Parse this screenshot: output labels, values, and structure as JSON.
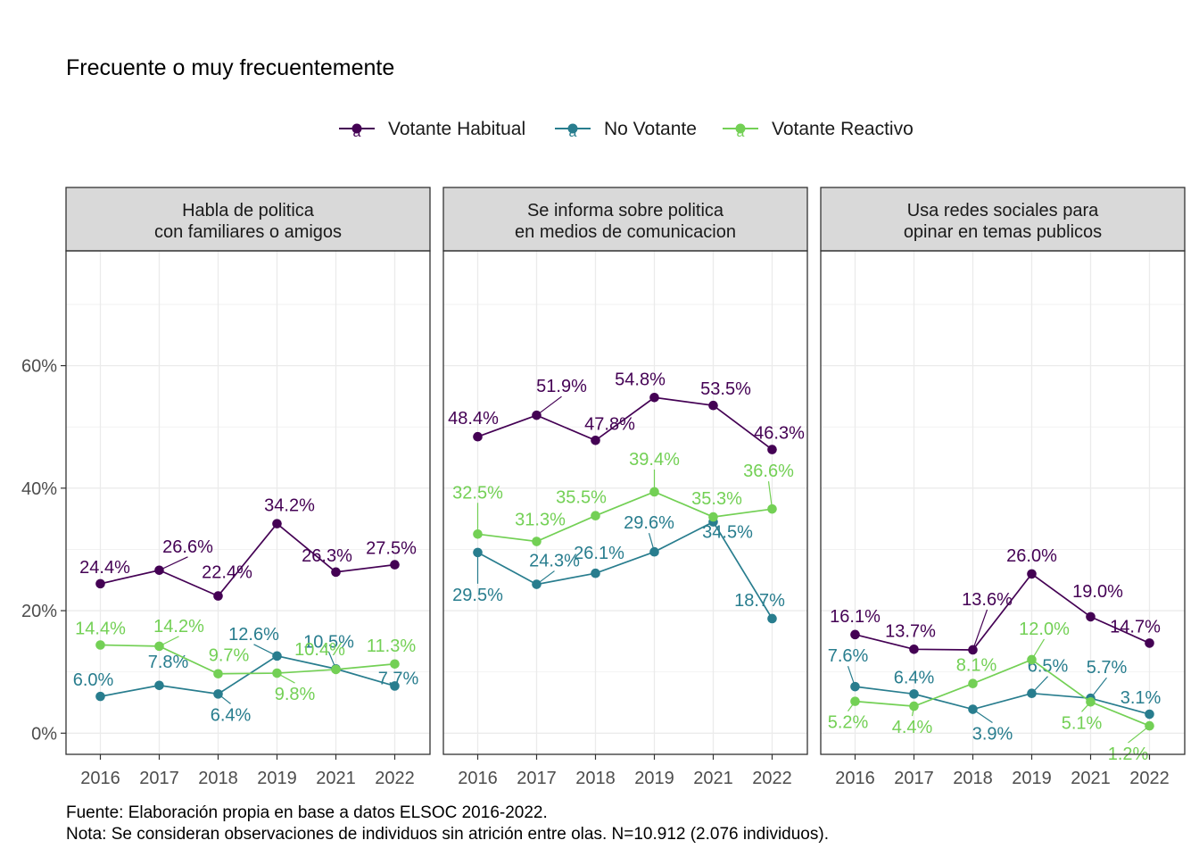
{
  "chart_data": {
    "type": "line",
    "title": "Frecuente o muy frecuentemente",
    "caption_line1": "Fuente: Elaboración propia en base a datos ELSOC 2016-2022.",
    "caption_line2": "Nota: Se consideran observaciones de individuos sin atrición entre olas. N=10.912 (2.076 individuos).",
    "x": [
      "2016",
      "2017",
      "2018",
      "2019",
      "2021",
      "2022"
    ],
    "ylim": [
      0,
      72
    ],
    "yticks": [
      0,
      20,
      40,
      60
    ],
    "ytick_labels": [
      "0%",
      "20%",
      "40%",
      "60%"
    ],
    "grid": true,
    "legend_position": "top",
    "legend_glyph": "a",
    "series_meta": [
      {
        "name": "Votante Habitual",
        "color": "#440154"
      },
      {
        "name": "No Votante",
        "color": "#287d8e"
      },
      {
        "name": "Votante Reactivo",
        "color": "#73d055"
      }
    ],
    "panels": [
      {
        "title_line1": "Habla de politica",
        "title_line2": "con familiares o amigos",
        "series": [
          {
            "values": [
              24.4,
              26.6,
              22.4,
              34.2,
              26.3,
              27.5
            ],
            "labels": [
              "24.4%",
              "26.6%",
              "22.4%",
              "34.2%",
              "26.3%",
              "27.5%"
            ]
          },
          {
            "values": [
              6.0,
              7.8,
              6.4,
              12.6,
              10.5,
              7.7
            ],
            "labels": [
              "6.0%",
              "7.8%",
              "6.4%",
              "12.6%",
              "10.5%",
              "7.7%"
            ]
          },
          {
            "values": [
              14.4,
              14.2,
              9.7,
              9.8,
              10.4,
              11.3
            ],
            "labels": [
              "14.4%",
              "14.2%",
              "9.7%",
              "9.8%",
              "10.4%",
              "11.3%"
            ]
          }
        ]
      },
      {
        "title_line1": "Se informa sobre politica",
        "title_line2": "en medios de comunicacion",
        "series": [
          {
            "values": [
              48.4,
              51.9,
              47.8,
              54.8,
              53.5,
              46.3
            ],
            "labels": [
              "48.4%",
              "51.9%",
              "47.8%",
              "54.8%",
              "53.5%",
              "46.3%"
            ]
          },
          {
            "values": [
              29.5,
              24.3,
              26.1,
              29.6,
              34.5,
              18.7
            ],
            "labels": [
              "29.5%",
              "24.3%",
              "26.1%",
              "29.6%",
              "34.5%",
              "18.7%"
            ]
          },
          {
            "values": [
              32.5,
              31.3,
              35.5,
              39.4,
              35.3,
              36.6
            ],
            "labels": [
              "32.5%",
              "31.3%",
              "35.5%",
              "39.4%",
              "35.3%",
              "36.6%"
            ]
          }
        ]
      },
      {
        "title_line1": "Usa redes sociales para",
        "title_line2": "opinar en temas publicos",
        "series": [
          {
            "values": [
              16.1,
              13.7,
              13.6,
              26.0,
              19.0,
              14.7
            ],
            "labels": [
              "16.1%",
              "13.7%",
              "13.6%",
              "26.0%",
              "19.0%",
              "14.7%"
            ]
          },
          {
            "values": [
              7.6,
              6.4,
              3.9,
              6.5,
              5.7,
              3.1
            ],
            "labels": [
              "7.6%",
              "6.4%",
              "3.9%",
              "6.5%",
              "5.7%",
              "3.1%"
            ]
          },
          {
            "values": [
              5.2,
              4.4,
              8.1,
              12.0,
              5.1,
              1.2
            ],
            "labels": [
              "5.2%",
              "4.4%",
              "8.1%",
              "12.0%",
              "5.1%",
              "1.2%"
            ]
          }
        ]
      }
    ]
  }
}
